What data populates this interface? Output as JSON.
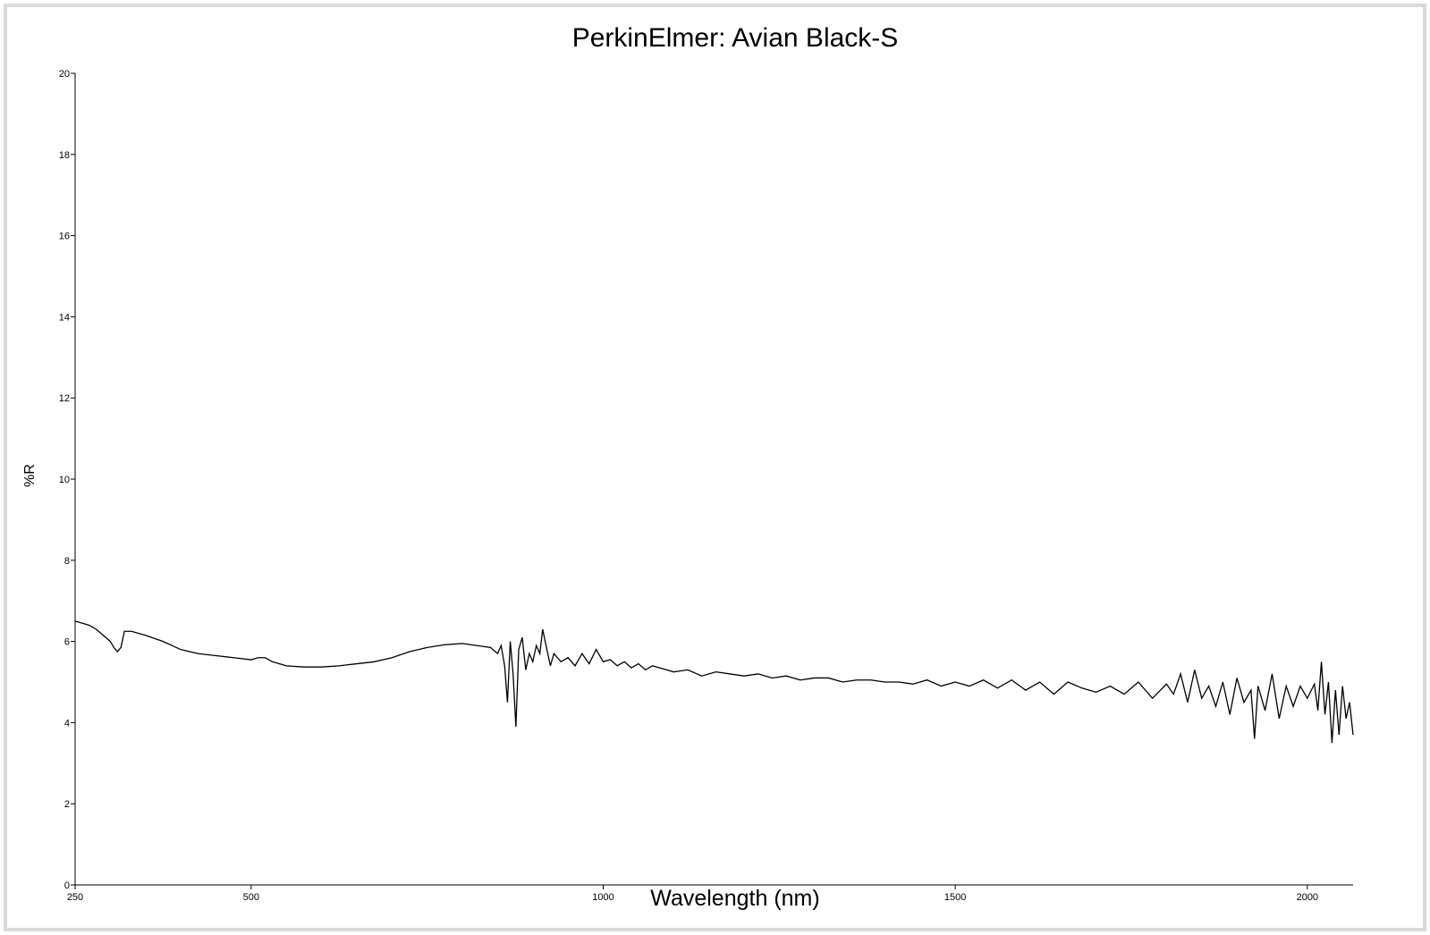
{
  "chart_data": {
    "type": "line",
    "title": "PerkinElmer: Avian Black-S",
    "x_label": "Wavelength (nm)",
    "y_label": "%R",
    "xlim": [
      250,
      2065
    ],
    "ylim": [
      0,
      20
    ],
    "xticks": [
      250,
      500,
      1000,
      1500,
      2000
    ],
    "yticks": [
      0,
      2,
      4,
      6,
      8,
      10,
      12,
      14,
      16,
      18,
      20
    ],
    "x": [
      250,
      260,
      270,
      280,
      290,
      300,
      305,
      310,
      315,
      320,
      330,
      340,
      350,
      375,
      400,
      425,
      450,
      475,
      500,
      510,
      520,
      530,
      550,
      575,
      600,
      625,
      650,
      675,
      700,
      725,
      750,
      775,
      800,
      820,
      840,
      850,
      855,
      860,
      864,
      868,
      872,
      876,
      880,
      885,
      890,
      895,
      900,
      905,
      910,
      914,
      920,
      925,
      930,
      940,
      950,
      960,
      970,
      980,
      990,
      1000,
      1010,
      1020,
      1030,
      1040,
      1050,
      1060,
      1070,
      1080,
      1090,
      1100,
      1120,
      1140,
      1160,
      1180,
      1200,
      1220,
      1240,
      1260,
      1280,
      1300,
      1320,
      1340,
      1360,
      1380,
      1400,
      1420,
      1440,
      1460,
      1480,
      1500,
      1520,
      1540,
      1560,
      1580,
      1600,
      1620,
      1640,
      1660,
      1680,
      1700,
      1720,
      1740,
      1760,
      1780,
      1800,
      1810,
      1820,
      1830,
      1840,
      1850,
      1860,
      1870,
      1880,
      1890,
      1900,
      1910,
      1920,
      1925,
      1930,
      1940,
      1950,
      1960,
      1970,
      1980,
      1990,
      2000,
      2010,
      2015,
      2020,
      2025,
      2030,
      2035,
      2040,
      2045,
      2050,
      2055,
      2060,
      2065
    ],
    "series": [
      {
        "color": "#000000",
        "values": [
          6.5,
          6.45,
          6.4,
          6.3,
          6.15,
          6.0,
          5.85,
          5.75,
          5.85,
          6.25,
          6.25,
          6.2,
          6.15,
          6.0,
          5.8,
          5.7,
          5.65,
          5.6,
          5.55,
          5.6,
          5.6,
          5.5,
          5.4,
          5.37,
          5.37,
          5.4,
          5.45,
          5.5,
          5.6,
          5.75,
          5.85,
          5.92,
          5.95,
          5.9,
          5.85,
          5.7,
          5.9,
          5.4,
          4.5,
          6.0,
          5.2,
          3.9,
          5.8,
          6.1,
          5.3,
          5.7,
          5.5,
          5.9,
          5.7,
          6.3,
          5.8,
          5.4,
          5.7,
          5.5,
          5.6,
          5.4,
          5.7,
          5.45,
          5.8,
          5.5,
          5.55,
          5.4,
          5.5,
          5.35,
          5.45,
          5.3,
          5.4,
          5.35,
          5.3,
          5.25,
          5.3,
          5.15,
          5.25,
          5.2,
          5.15,
          5.2,
          5.1,
          5.15,
          5.05,
          5.1,
          5.1,
          5.0,
          5.05,
          5.05,
          5.0,
          5.0,
          4.95,
          5.05,
          4.9,
          5.0,
          4.9,
          5.05,
          4.85,
          5.05,
          4.8,
          5.0,
          4.7,
          5.0,
          4.85,
          4.75,
          4.9,
          4.7,
          5.0,
          4.6,
          4.95,
          4.7,
          5.2,
          4.5,
          5.3,
          4.6,
          4.9,
          4.4,
          5.0,
          4.2,
          5.1,
          4.5,
          4.8,
          3.6,
          4.9,
          4.3,
          5.2,
          4.1,
          4.9,
          4.4,
          4.9,
          4.6,
          4.95,
          4.3,
          5.5,
          4.2,
          5.0,
          3.5,
          4.8,
          3.7,
          4.9,
          4.1,
          4.5,
          3.7
        ]
      }
    ]
  }
}
